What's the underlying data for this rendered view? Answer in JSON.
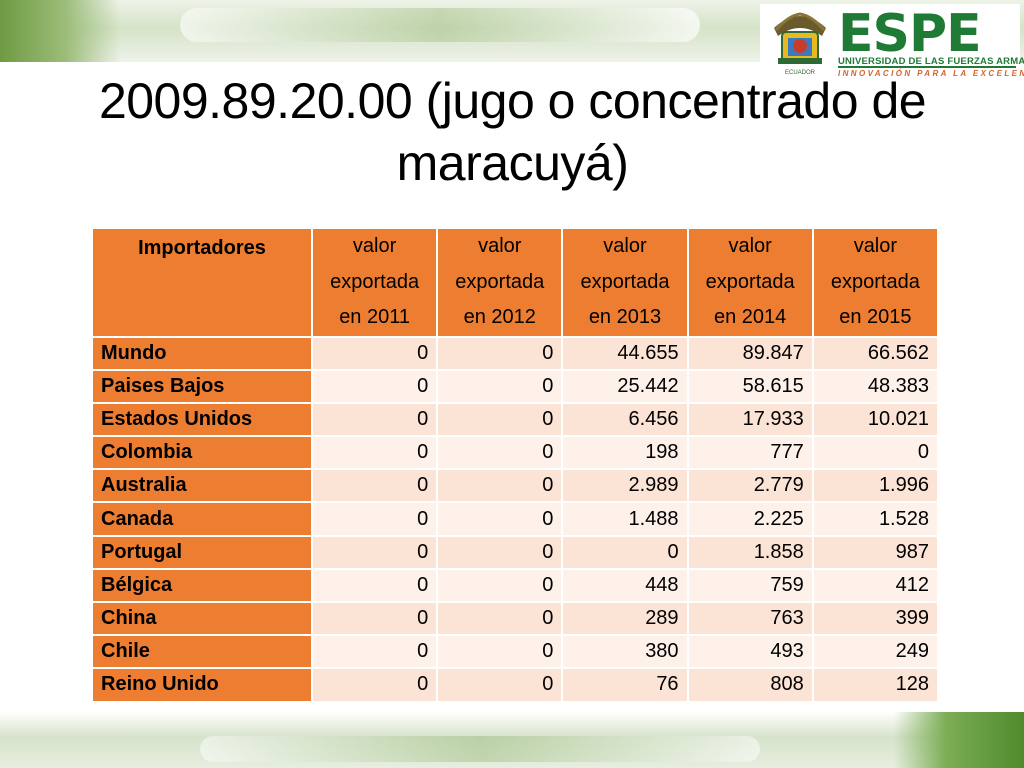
{
  "slide": {
    "title": "2009.89.20.00 (jugo o concentrado de maracuyá)"
  },
  "logo": {
    "name": "ESPE",
    "line1": "UNIVERSIDAD DE LAS FUERZAS ARMADAS",
    "line2": "INNOVACIÓN PARA LA EXCELENCIA",
    "seal_text": "ECUADOR",
    "brand_color": "#1f7a36",
    "accent_color": "#d0652b"
  },
  "table": {
    "header_color": "#ed7d31",
    "headers": [
      [
        "Importadores"
      ],
      [
        "valor",
        "exportada",
        "en 2011"
      ],
      [
        "valor",
        "exportada",
        "en 2012"
      ],
      [
        "valor",
        "exportada",
        "en 2013"
      ],
      [
        "valor",
        "exportada",
        "en 2014"
      ],
      [
        "valor",
        "exportada",
        "en 2015"
      ]
    ],
    "rows": [
      {
        "country": "Mundo",
        "values": [
          "0",
          "0",
          "44.655",
          "89.847",
          "66.562"
        ]
      },
      {
        "country": "Paises Bajos",
        "values": [
          "0",
          "0",
          "25.442",
          "58.615",
          "48.383"
        ]
      },
      {
        "country": "Estados Unidos",
        "values": [
          "0",
          "0",
          "6.456",
          "17.933",
          "10.021"
        ]
      },
      {
        "country": "Colombia",
        "values": [
          "0",
          "0",
          "198",
          "777",
          "0"
        ]
      },
      {
        "country": "Australia",
        "values": [
          "0",
          "0",
          "2.989",
          "2.779",
          "1.996"
        ]
      },
      {
        "country": "Canada",
        "values": [
          "0",
          "0",
          "1.488",
          "2.225",
          "1.528"
        ]
      },
      {
        "country": "Portugal",
        "values": [
          "0",
          "0",
          "0",
          "1.858",
          "987"
        ]
      },
      {
        "country": "Bélgica",
        "values": [
          "0",
          "0",
          "448",
          "759",
          "412"
        ]
      },
      {
        "country": "China",
        "values": [
          "0",
          "0",
          "289",
          "763",
          "399"
        ]
      },
      {
        "country": "Chile",
        "values": [
          "0",
          "0",
          "380",
          "493",
          "249"
        ]
      },
      {
        "country": "Reino Unido",
        "values": [
          "0",
          "0",
          "76",
          "808",
          "128"
        ]
      }
    ]
  }
}
